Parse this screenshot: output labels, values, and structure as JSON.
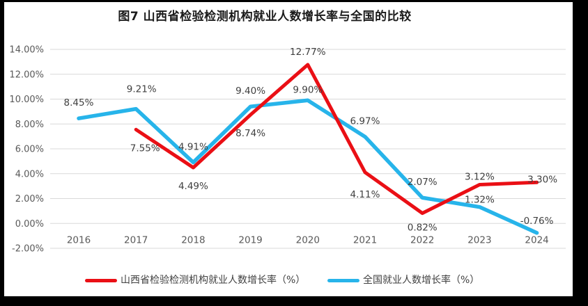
{
  "title": "图7 山西省检验检测机构就业人数增长率与全国的比较",
  "frame": {
    "border_color": "#000000",
    "background": "#ffffff"
  },
  "chart_data": {
    "type": "line",
    "title": "图7 山西省检验检测机构就业人数增长率与全国的比较",
    "categories": [
      "2016",
      "2017",
      "2018",
      "2019",
      "2020",
      "2021",
      "2022",
      "2023",
      "2024"
    ],
    "series": [
      {
        "name": "山西省检验检测机构就业人数增长率（%）",
        "color": "#ea0f15",
        "values": [
          null,
          7.55,
          4.49,
          8.74,
          12.77,
          4.11,
          0.82,
          3.12,
          3.3
        ],
        "point_labels": [
          null,
          "7.55%",
          "4.49%",
          "8.74%",
          "12.77%",
          "4.11%",
          "0.82%",
          "3.12%",
          "3.30%"
        ],
        "label_positions": [
          null,
          "below",
          "below",
          "below",
          "above",
          "below",
          "below",
          "above",
          "above"
        ]
      },
      {
        "name": "全国就业人数增长率（%）",
        "color": "#27b4ea",
        "values": [
          8.45,
          9.21,
          4.91,
          9.4,
          9.9,
          6.97,
          2.07,
          1.32,
          -0.76
        ],
        "point_labels": [
          "8.45%",
          "9.21%",
          "4.91%",
          "9.40%",
          "9.90%",
          "6.97%",
          "2.07%",
          "1.32%",
          "-0.76%"
        ],
        "label_positions": [
          "above",
          "above",
          "above",
          "above",
          "above",
          "above",
          "above",
          "above",
          "above"
        ]
      }
    ],
    "y_axis": {
      "min": -2,
      "max": 14,
      "step": 2,
      "tick_labels": [
        "14.00%",
        "12.00%",
        "10.00%",
        "8.00%",
        "6.00%",
        "4.00%",
        "2.00%",
        "0.00%",
        "-2.00%"
      ]
    },
    "x_axis": {
      "tick_labels": [
        "2016",
        "2017",
        "2018",
        "2019",
        "2020",
        "2021",
        "2022",
        "2023",
        "2024"
      ]
    },
    "grid": "horizontal",
    "grid_color": "#d9d9d9",
    "axis_label_color": "#595959",
    "data_label_color": "#3f3f3f",
    "legend_position": "bottom",
    "ylim": [
      -2,
      14
    ]
  }
}
